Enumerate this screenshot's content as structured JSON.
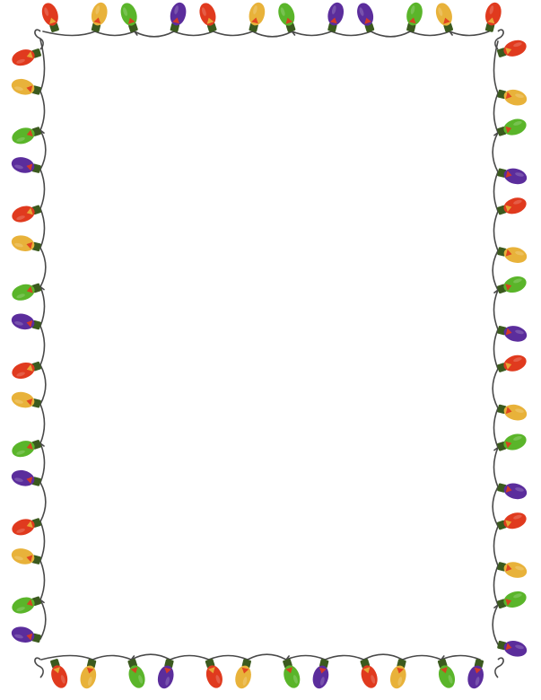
{
  "colors": {
    "background": "#ffffff",
    "wire": "#4a4a4a",
    "socket": "#3b5a1e",
    "bulb_palette": {
      "red": "#e03a1e",
      "yellow": "#e8b23a",
      "green": "#5ab52a",
      "purple": "#5b2d9c"
    }
  },
  "icons": {
    "bulb": "christmas-light-bulb-icon",
    "wire": "light-string-wire"
  },
  "border": {
    "style": "christmas-lights-frame",
    "bulb_sequence": [
      "red",
      "yellow",
      "green",
      "purple"
    ],
    "top_colors": [
      "red",
      "yellow",
      "green",
      "purple",
      "red",
      "yellow",
      "green",
      "purple",
      "purple",
      "green",
      "yellow",
      "red"
    ],
    "bottom_colors": [
      "red",
      "yellow",
      "green",
      "purple",
      "red",
      "yellow",
      "green",
      "purple",
      "red",
      "yellow",
      "green",
      "purple"
    ],
    "left_colors": [
      "red",
      "yellow",
      "green",
      "purple",
      "red",
      "yellow",
      "green",
      "purple",
      "red",
      "yellow",
      "green",
      "purple",
      "red",
      "yellow",
      "green",
      "purple"
    ],
    "right_colors": [
      "red",
      "yellow",
      "green",
      "purple",
      "red",
      "yellow",
      "green",
      "purple",
      "red",
      "yellow",
      "green",
      "purple",
      "red",
      "yellow",
      "green",
      "purple"
    ]
  }
}
